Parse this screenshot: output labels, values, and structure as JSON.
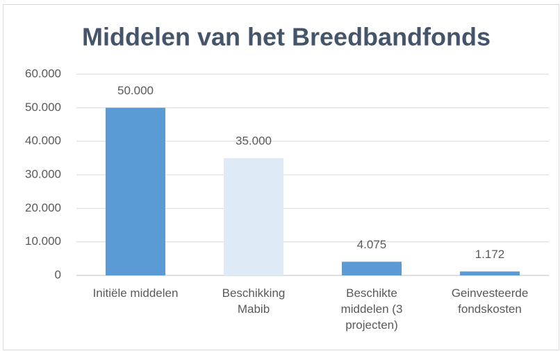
{
  "chart_data": {
    "type": "bar",
    "title": "Middelen van het Breedbandfonds",
    "categories": [
      "Initiële middelen",
      "Beschikking Mabib",
      "Beschikte middelen (3 projecten)",
      "Geinvesteerde fondskosten"
    ],
    "values": [
      50000,
      35000,
      4075,
      1172
    ],
    "value_labels": [
      "50.000",
      "35.000",
      "4.075",
      "1.172"
    ],
    "colors": [
      "#5b9bd5",
      "#deebf7",
      "#5b9bd5",
      "#5b9bd5"
    ],
    "ylim": [
      0,
      60000
    ],
    "yticks": [
      0,
      {
        "value": 10000,
        "label": "10.000"
      },
      {
        "value": 20000,
        "label": "20.000"
      },
      {
        "value": 30000,
        "label": "30.000"
      },
      {
        "value": 40000,
        "label": "40.000"
      },
      {
        "value": 50000,
        "label": "50.000"
      },
      {
        "value": 60000,
        "label": "60.000"
      }
    ],
    "grid": true
  }
}
